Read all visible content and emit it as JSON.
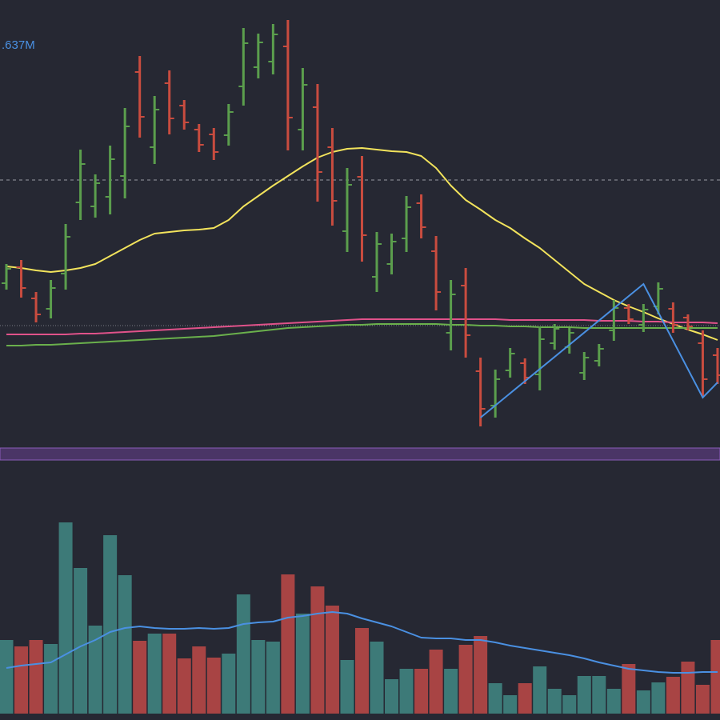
{
  "chart_data": {
    "type": "ohlc",
    "label": ".637M",
    "ylim": [
      0,
      560
    ],
    "up_color": "#5b9e4d",
    "down_color": "#c94c3f",
    "ohlc": [
      [
        206,
        230,
        198,
        224
      ],
      [
        226,
        235,
        188,
        200
      ],
      [
        187,
        195,
        157,
        167
      ],
      [
        174,
        210,
        162,
        200
      ],
      [
        218,
        280,
        198,
        264
      ],
      [
        307,
        373,
        285,
        355
      ],
      [
        302,
        342,
        288,
        331
      ],
      [
        314,
        378,
        292,
        361
      ],
      [
        340,
        425,
        312,
        402
      ],
      [
        470,
        490,
        388,
        414
      ],
      [
        376,
        440,
        355,
        423
      ],
      [
        456,
        472,
        392,
        412
      ],
      [
        428,
        435,
        398,
        407
      ],
      [
        398,
        405,
        370,
        379
      ],
      [
        392,
        400,
        360,
        370
      ],
      [
        391,
        430,
        378,
        420
      ],
      [
        452,
        525,
        428,
        506
      ],
      [
        476,
        518,
        462,
        507
      ],
      [
        483,
        530,
        467,
        517
      ],
      [
        502,
        535,
        372,
        413
      ],
      [
        398,
        475,
        372,
        454
      ],
      [
        426,
        455,
        308,
        345
      ],
      [
        376,
        400,
        278,
        309
      ],
      [
        271,
        350,
        245,
        329
      ],
      [
        339,
        365,
        233,
        266
      ],
      [
        214,
        270,
        195,
        255
      ],
      [
        230,
        268,
        217,
        258
      ],
      [
        262,
        315,
        245,
        301
      ],
      [
        306,
        317,
        262,
        276
      ],
      [
        246,
        265,
        172,
        195
      ],
      [
        144,
        210,
        122,
        192
      ],
      [
        203,
        225,
        113,
        141
      ],
      [
        96,
        113,
        27,
        49
      ],
      [
        53,
        98,
        38,
        86
      ],
      [
        97,
        125,
        88,
        118
      ],
      [
        106,
        112,
        80,
        88
      ],
      [
        92,
        152,
        72,
        136
      ],
      [
        131,
        155,
        123,
        149
      ],
      [
        126,
        150,
        118,
        144
      ],
      [
        94,
        120,
        85,
        113
      ],
      [
        109,
        130,
        102,
        124
      ],
      [
        147,
        185,
        134,
        175
      ],
      [
        175,
        180,
        155,
        161
      ],
      [
        154,
        180,
        145,
        173
      ],
      [
        177,
        207,
        167,
        199
      ],
      [
        174,
        182,
        144,
        154
      ],
      [
        163,
        167,
        147,
        152
      ],
      [
        131,
        147,
        65,
        86
      ],
      [
        116,
        125,
        80,
        91
      ]
    ],
    "lines": [
      {
        "color": "#f2e35c",
        "values": [
          227,
          225,
          222,
          220,
          222,
          225,
          230,
          240,
          250,
          260,
          268,
          270,
          272,
          273,
          275,
          285,
          302,
          315,
          328,
          340,
          352,
          363,
          370,
          374,
          375,
          373,
          371,
          370,
          365,
          350,
          328,
          310,
          298,
          285,
          275,
          262,
          250,
          235,
          220,
          205,
          195,
          185,
          177,
          170,
          162,
          155,
          148,
          142,
          135
        ]
      },
      {
        "color": "#e0528a",
        "values": [
          142,
          142,
          142,
          142,
          142,
          143,
          143,
          144,
          145,
          146,
          147,
          148,
          149,
          150,
          151,
          152,
          153,
          154,
          155,
          156,
          157,
          158,
          159,
          160,
          161,
          161,
          161,
          161,
          161,
          161,
          161,
          161,
          161,
          161,
          160,
          160,
          160,
          160,
          160,
          160,
          159,
          159,
          159,
          158,
          158,
          157,
          157,
          157,
          156
        ]
      },
      {
        "color": "#6ab04c",
        "values": [
          128,
          128,
          129,
          129,
          130,
          131,
          132,
          133,
          134,
          135,
          136,
          137,
          138,
          139,
          140,
          142,
          144,
          146,
          148,
          150,
          151,
          152,
          153,
          154,
          154,
          155,
          155,
          155,
          155,
          155,
          154,
          154,
          153,
          153,
          152,
          152,
          151,
          151,
          151,
          150,
          150,
          150,
          150,
          150,
          150,
          150,
          150,
          150,
          150
        ]
      }
    ],
    "zigzag": {
      "color": "#4a90e2",
      "x": [
        32,
        43,
        47,
        48
      ],
      "values": [
        38,
        205,
        63,
        82
      ]
    },
    "hlines": [
      {
        "value": 335,
        "color": "#9a9ca6",
        "dash": "4 4"
      },
      {
        "value": 153,
        "color": "#7a7c86",
        "dash": "1 2"
      }
    ],
    "volume": {
      "ylim": [
        0,
        250
      ],
      "up_color": "#3d7a78",
      "down_color": "#a84444",
      "values": [
        92,
        84,
        92,
        87,
        239,
        182,
        110,
        223,
        173,
        91,
        100,
        100,
        69,
        84,
        70,
        75,
        149,
        92,
        90,
        174,
        125,
        159,
        135,
        67,
        107,
        90,
        43,
        56,
        56,
        80,
        56,
        86,
        97,
        38,
        23,
        38,
        59,
        31,
        23,
        47,
        47,
        31,
        62,
        29,
        39,
        46,
        65,
        36,
        92
      ],
      "ma": {
        "color": "#4a90e2",
        "values": [
          57,
          60,
          62,
          64,
          74,
          84,
          92,
          102,
          107,
          109,
          107,
          106,
          106,
          107,
          106,
          107,
          112,
          114,
          115,
          120,
          122,
          125,
          127,
          125,
          119,
          114,
          109,
          102,
          95,
          94,
          94,
          92,
          92,
          89,
          85,
          82,
          79,
          76,
          73,
          69,
          64,
          60,
          56,
          54,
          52,
          51,
          51,
          52,
          52
        ]
      }
    }
  }
}
